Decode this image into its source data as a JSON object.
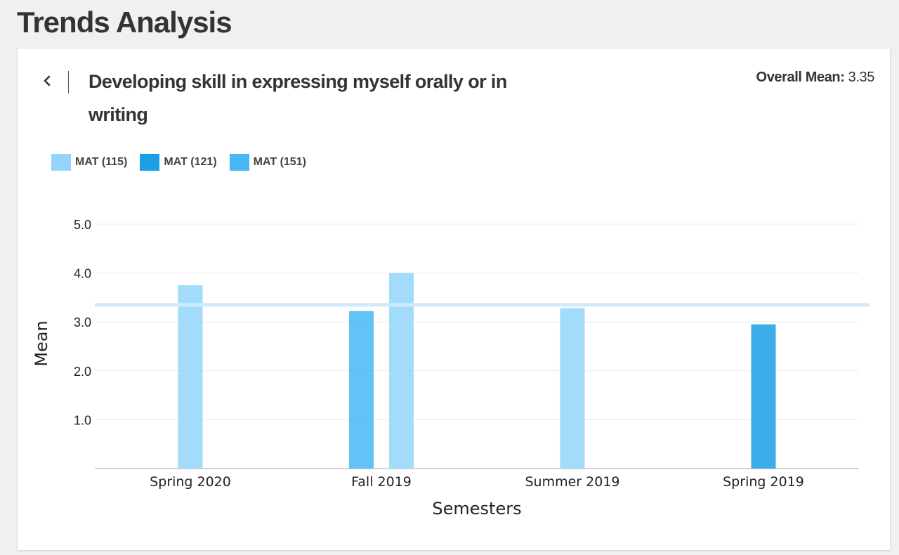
{
  "page": {
    "title": "Trends Analysis"
  },
  "card": {
    "question": "Developing skill in expressing myself orally or in writing",
    "overall_mean_label": "Overall Mean:",
    "overall_mean_value": "3.35"
  },
  "icons": {
    "back": "chevron-left-icon"
  },
  "colors": {
    "mean_line": "#cfeafb",
    "grid": "#ebebeb",
    "axis": "#c8c8c8"
  },
  "chart_data": {
    "type": "bar",
    "categories": [
      "Spring 2020",
      "Fall 2019",
      "Summer 2019",
      "Spring 2019"
    ],
    "series": [
      {
        "name": "MAT (115)",
        "color": "#93d5fa",
        "values": [
          3.75,
          4.0,
          3.28,
          null
        ]
      },
      {
        "name": "MAT (121)",
        "color": "#1a9fe6",
        "values": [
          null,
          null,
          null,
          2.95
        ]
      },
      {
        "name": "MAT (151)",
        "color": "#47b8f5",
        "values": [
          null,
          3.22,
          null,
          null
        ]
      }
    ],
    "bar_groups": [
      [
        0
      ],
      [
        2,
        0
      ],
      [
        0
      ],
      [
        1
      ]
    ],
    "overall_mean": 3.35,
    "ylim": [
      0,
      5
    ],
    "yticks": [
      "1.0",
      "2.0",
      "3.0",
      "4.0",
      "5.0"
    ],
    "xlabel": "Semesters",
    "ylabel": "Mean",
    "grid": true,
    "legend_position": "top-left"
  }
}
